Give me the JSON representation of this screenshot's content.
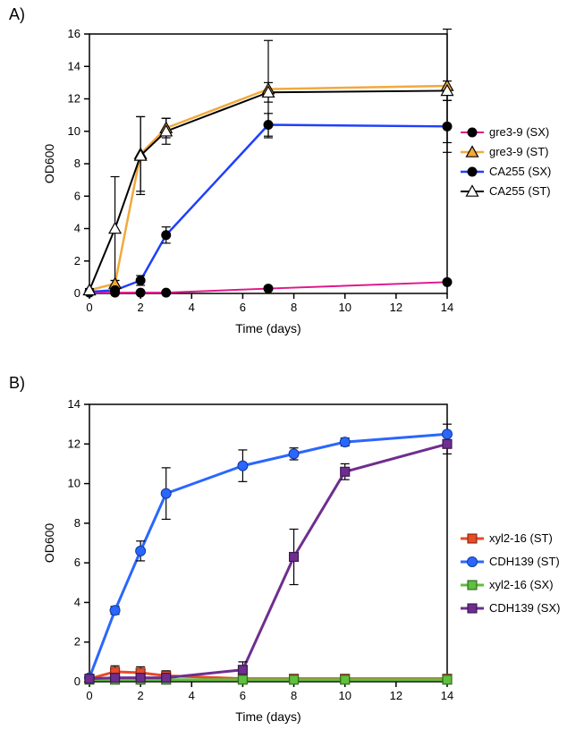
{
  "panelA": {
    "label": "A)",
    "type": "line",
    "xlabel": "Time (days)",
    "ylabel": "OD600",
    "label_fontsize": 14,
    "title_fontsize": 14,
    "xlim": [
      0,
      14
    ],
    "ylim": [
      0,
      16
    ],
    "xticks": [
      0,
      2,
      4,
      6,
      8,
      10,
      12,
      14
    ],
    "yticks": [
      0,
      2,
      4,
      6,
      8,
      10,
      12,
      14,
      16
    ],
    "background_color": "#ffffff",
    "axis_color": "#000000",
    "series": [
      {
        "name": "gre3-9 (SX)",
        "color": "#e11689",
        "marker": "circle-filled",
        "marker_fill": "#000000",
        "marker_stroke": "#000000",
        "line_width": 2,
        "points": [
          {
            "x": 0,
            "y": 0.05
          },
          {
            "x": 1,
            "y": 0.05
          },
          {
            "x": 2,
            "y": 0.05
          },
          {
            "x": 3,
            "y": 0.05
          },
          {
            "x": 7,
            "y": 0.3
          },
          {
            "x": 14,
            "y": 0.7
          }
        ],
        "yerr": [
          0,
          0,
          0,
          0,
          0,
          0
        ]
      },
      {
        "name": "gre3-9 (ST)",
        "color": "#f2a93c",
        "marker": "triangle-filled",
        "marker_fill": "#f2a93c",
        "marker_stroke": "#000000",
        "line_width": 2.5,
        "points": [
          {
            "x": 0,
            "y": 0.2
          },
          {
            "x": 1,
            "y": 0.6
          },
          {
            "x": 2,
            "y": 8.6
          },
          {
            "x": 3,
            "y": 10.2
          },
          {
            "x": 7,
            "y": 12.6
          },
          {
            "x": 14,
            "y": 12.8
          }
        ],
        "yerr": [
          0.1,
          0.2,
          2.3,
          0.6,
          3.0,
          3.5
        ]
      },
      {
        "name": "CA255 (SX)",
        "color": "#1f3fff",
        "marker": "circle-filled",
        "marker_fill": "#000000",
        "marker_stroke": "#000000",
        "line_width": 2.5,
        "points": [
          {
            "x": 0,
            "y": 0.1
          },
          {
            "x": 1,
            "y": 0.2
          },
          {
            "x": 2,
            "y": 0.8
          },
          {
            "x": 3,
            "y": 3.6
          },
          {
            "x": 7,
            "y": 10.4
          },
          {
            "x": 14,
            "y": 10.3
          }
        ],
        "yerr": [
          0,
          0,
          0.3,
          0.5,
          0.7,
          1.6
        ]
      },
      {
        "name": "CA255 (ST)",
        "color": "#000000",
        "marker": "triangle-open",
        "marker_fill": "#ffffff",
        "marker_stroke": "#000000",
        "line_width": 2,
        "points": [
          {
            "x": 0,
            "y": 0.2
          },
          {
            "x": 1,
            "y": 4.0
          },
          {
            "x": 2,
            "y": 8.5
          },
          {
            "x": 3,
            "y": 10.0
          },
          {
            "x": 7,
            "y": 12.4
          },
          {
            "x": 14,
            "y": 12.5
          }
        ],
        "yerr": [
          0.1,
          3.2,
          2.4,
          0.8,
          0.6,
          0.6
        ]
      }
    ]
  },
  "panelB": {
    "label": "B)",
    "type": "line",
    "xlabel": "Time (days)",
    "ylabel": "OD600",
    "label_fontsize": 14,
    "xlim": [
      0,
      14
    ],
    "ylim": [
      0,
      14
    ],
    "xticks": [
      0,
      2,
      4,
      6,
      8,
      10,
      12,
      14
    ],
    "yticks": [
      0,
      2,
      4,
      6,
      8,
      10,
      12,
      14
    ],
    "background_color": "#ffffff",
    "axis_color": "#000000",
    "series": [
      {
        "name": "xyl2-16 (ST)",
        "color": "#ea4a26",
        "marker": "square-filled",
        "marker_fill": "#ea4a26",
        "marker_stroke": "#8a2a15",
        "line_width": 3,
        "points": [
          {
            "x": 0,
            "y": 0.15
          },
          {
            "x": 1,
            "y": 0.5
          },
          {
            "x": 2,
            "y": 0.45
          },
          {
            "x": 3,
            "y": 0.3
          },
          {
            "x": 6,
            "y": 0.15
          },
          {
            "x": 8,
            "y": 0.15
          },
          {
            "x": 10,
            "y": 0.15
          },
          {
            "x": 14,
            "y": 0.15
          }
        ],
        "yerr": [
          0.05,
          0.3,
          0.3,
          0.25,
          0,
          0,
          0,
          0
        ]
      },
      {
        "name": "CDH139 (ST)",
        "color": "#2a66ff",
        "marker": "circle-filled",
        "marker_fill": "#2a66ff",
        "marker_stroke": "#103a9a",
        "line_width": 3,
        "points": [
          {
            "x": 0,
            "y": 0.2
          },
          {
            "x": 1,
            "y": 3.6
          },
          {
            "x": 2,
            "y": 6.6
          },
          {
            "x": 3,
            "y": 9.5
          },
          {
            "x": 6,
            "y": 10.9
          },
          {
            "x": 8,
            "y": 11.5
          },
          {
            "x": 10,
            "y": 12.1
          },
          {
            "x": 14,
            "y": 12.5
          }
        ],
        "yerr": [
          0,
          0.2,
          0.5,
          1.3,
          0.8,
          0.3,
          0.2,
          0.5
        ]
      },
      {
        "name": "xyl2-16 (SX)",
        "color": "#5fbf3e",
        "marker": "square-filled",
        "marker_fill": "#5fbf3e",
        "marker_stroke": "#2f6e1e",
        "line_width": 3,
        "points": [
          {
            "x": 0,
            "y": 0.1
          },
          {
            "x": 1,
            "y": 0.1
          },
          {
            "x": 2,
            "y": 0.1
          },
          {
            "x": 3,
            "y": 0.1
          },
          {
            "x": 6,
            "y": 0.1
          },
          {
            "x": 8,
            "y": 0.1
          },
          {
            "x": 10,
            "y": 0.1
          },
          {
            "x": 14,
            "y": 0.1
          }
        ],
        "yerr": [
          0,
          0,
          0,
          0,
          0,
          0,
          0,
          0
        ]
      },
      {
        "name": "CDH139 (SX)",
        "color": "#6e2e8f",
        "marker": "square-filled",
        "marker_fill": "#6e2e8f",
        "marker_stroke": "#3d1850",
        "line_width": 3,
        "points": [
          {
            "x": 0,
            "y": 0.15
          },
          {
            "x": 1,
            "y": 0.2
          },
          {
            "x": 2,
            "y": 0.2
          },
          {
            "x": 3,
            "y": 0.2
          },
          {
            "x": 6,
            "y": 0.6
          },
          {
            "x": 8,
            "y": 6.3
          },
          {
            "x": 10,
            "y": 10.6
          },
          {
            "x": 14,
            "y": 12.0
          }
        ],
        "yerr": [
          0,
          0.15,
          0.15,
          0.15,
          0.4,
          1.4,
          0.4,
          0.5
        ]
      }
    ]
  }
}
